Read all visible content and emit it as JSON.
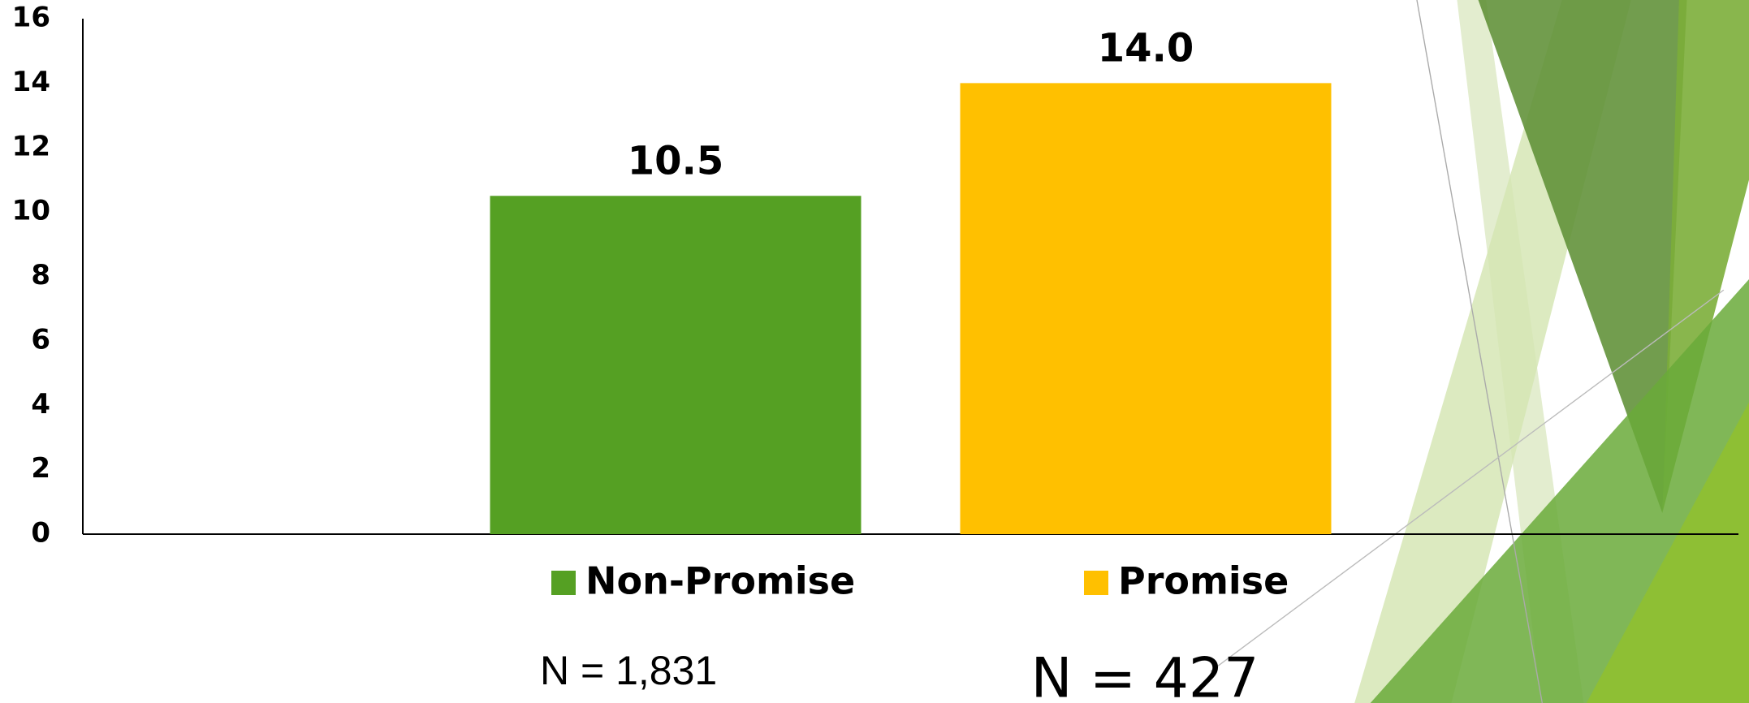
{
  "chart_data": {
    "type": "bar",
    "categories": [
      null
    ],
    "series": [
      {
        "name": "Non-Promise",
        "color": "#55a023",
        "values": [
          10.5
        ]
      },
      {
        "name": "Promise",
        "color": "#ffc000",
        "values": [
          14.0
        ],
        "value_labels": [
          "14.0"
        ]
      }
    ],
    "ylim": [
      0,
      16
    ],
    "yticks": [
      0,
      2,
      4,
      6,
      8,
      10,
      12,
      14,
      16
    ],
    "grid": false,
    "annotations": [
      "N = 1,831",
      "N = 427"
    ]
  }
}
